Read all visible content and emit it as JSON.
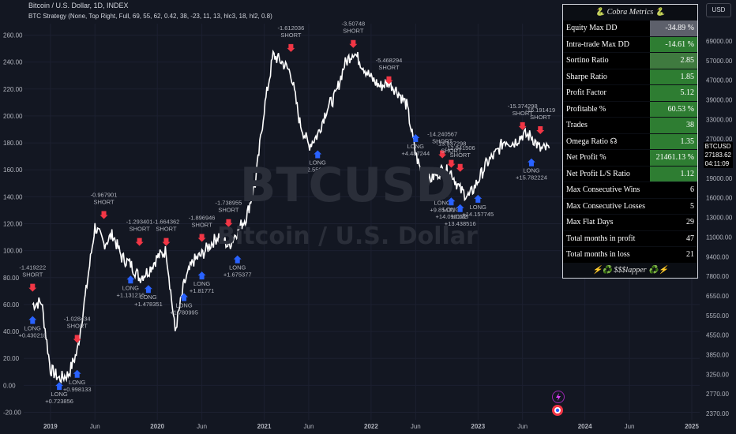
{
  "header": {
    "symbol_line": "Bitcoin / U.S. Dollar, 1D, INDEX",
    "strategy_line": "BTC Strategy (None, Top Right, Full, 69, 55, 62, 0.42, 38, -23, 11, 13, hlc3, 18, hl2, 0.8)"
  },
  "watermark": {
    "symbol": "BTCUSD",
    "subtitle": "Bitcoin / U.S. Dollar"
  },
  "currency_button": "USD",
  "price_tags": {
    "symbol": "BTCUSD",
    "price": "27183.62",
    "countdown": "04:11:09"
  },
  "colors": {
    "background": "#131722",
    "candles": "#ffffff",
    "long_arrow": "#2962ff",
    "short_arrow": "#f23645",
    "metric_green": "#2e7d32",
    "metric_gray": "#5d606b"
  },
  "metrics": {
    "title": "🐍 Cobra Metrics 🐍",
    "rows": [
      {
        "label": "Equity Max DD",
        "value": "-34.89 %",
        "color": "#5d606b"
      },
      {
        "label": "Intra-trade Max DD",
        "value": "-14.61 %",
        "color": "#2e7d32"
      },
      {
        "label": "Sortino Ratio",
        "value": "2.85",
        "color": "#3f7a3f"
      },
      {
        "label": "Sharpe Ratio",
        "value": "1.85",
        "color": "#2e7d32"
      },
      {
        "label": "Profit Factor",
        "value": "5.12",
        "color": "#2e7d32"
      },
      {
        "label": "Profitable %",
        "value": "60.53 %",
        "color": "#2e7d32"
      },
      {
        "label": "Trades",
        "value": "38",
        "color": "#2e7d32"
      },
      {
        "label": "Omega Ratio ☊",
        "value": "1.35",
        "color": "#2e7d32"
      },
      {
        "label": "Net Profit %",
        "value": "21461.13 %",
        "color": "#2e7d32"
      },
      {
        "label": "Net Profit L/S Ratio",
        "value": "1.12",
        "color": "#2e7d32"
      },
      {
        "label": "Max Consecutive Wins",
        "value": "6",
        "color": "#000000"
      },
      {
        "label": "Max Consecutive Losses",
        "value": "5",
        "color": "#000000"
      },
      {
        "label": "Max Flat Days",
        "value": "29",
        "color": "#000000"
      },
      {
        "label": "Total months in profit",
        "value": "47",
        "color": "#000000"
      },
      {
        "label": "Total months in loss",
        "value": "21",
        "color": "#000000"
      }
    ],
    "footer": "⚡️♻️ $$$lapper ♻️⚡️"
  },
  "chart_data": {
    "type": "line",
    "title": "Bitcoin / U.S. Dollar, 1D, INDEX",
    "left_axis": {
      "ticks": [
        "260.00",
        "240.00",
        "220.00",
        "200.00",
        "180.00",
        "160.00",
        "140.00",
        "120.00",
        "100.00",
        "80.00",
        "60.00",
        "40.00",
        "20.00",
        "0.00",
        "-20.00"
      ],
      "range": [
        -20,
        260
      ]
    },
    "right_axis": {
      "scale": "log",
      "ticks": [
        "69000.00",
        "57000.00",
        "47000.00",
        "39000.00",
        "33000.00",
        "27000.00",
        "23000.00",
        "19000.00",
        "16000.00",
        "13000.00",
        "11000.00",
        "9400.00",
        "7800.00",
        "6550.00",
        "5550.00",
        "4550.00",
        "3850.00",
        "3250.00",
        "2770.00",
        "2370.00"
      ]
    },
    "x_ticks": [
      "2019",
      "Jun",
      "2020",
      "Jun",
      "2021",
      "Jun",
      "2022",
      "Jun",
      "2023",
      "Jun",
      "2024",
      "Jun",
      "2025"
    ],
    "equity_curve": [
      {
        "x": "2018-11",
        "y": 60
      },
      {
        "x": "2018-12",
        "y": 62
      },
      {
        "x": "2019-01",
        "y": 12
      },
      {
        "x": "2019-02",
        "y": 5
      },
      {
        "x": "2019-03",
        "y": 8
      },
      {
        "x": "2019-04",
        "y": 25
      },
      {
        "x": "2019-05",
        "y": 70
      },
      {
        "x": "2019-06",
        "y": 118
      },
      {
        "x": "2019-07",
        "y": 105
      },
      {
        "x": "2019-08",
        "y": 112
      },
      {
        "x": "2019-09",
        "y": 95
      },
      {
        "x": "2019-10",
        "y": 90
      },
      {
        "x": "2019-11",
        "y": 80
      },
      {
        "x": "2019-12",
        "y": 85
      },
      {
        "x": "2020-01",
        "y": 95
      },
      {
        "x": "2020-02",
        "y": 100
      },
      {
        "x": "2020-03",
        "y": 40
      },
      {
        "x": "2020-04",
        "y": 75
      },
      {
        "x": "2020-05",
        "y": 92
      },
      {
        "x": "2020-06",
        "y": 97
      },
      {
        "x": "2020-07",
        "y": 105
      },
      {
        "x": "2020-08",
        "y": 112
      },
      {
        "x": "2020-09",
        "y": 103
      },
      {
        "x": "2020-10",
        "y": 115
      },
      {
        "x": "2020-11",
        "y": 125
      },
      {
        "x": "2020-12",
        "y": 150
      },
      {
        "x": "2021-01",
        "y": 205
      },
      {
        "x": "2021-02",
        "y": 245
      },
      {
        "x": "2021-03",
        "y": 240
      },
      {
        "x": "2021-04",
        "y": 232
      },
      {
        "x": "2021-05",
        "y": 195
      },
      {
        "x": "2021-06",
        "y": 178
      },
      {
        "x": "2021-07",
        "y": 186
      },
      {
        "x": "2021-08",
        "y": 205
      },
      {
        "x": "2021-09",
        "y": 215
      },
      {
        "x": "2021-10",
        "y": 238
      },
      {
        "x": "2021-11",
        "y": 248
      },
      {
        "x": "2021-12",
        "y": 238
      },
      {
        "x": "2022-01",
        "y": 228
      },
      {
        "x": "2022-02",
        "y": 222
      },
      {
        "x": "2022-03",
        "y": 225
      },
      {
        "x": "2022-04",
        "y": 218
      },
      {
        "x": "2022-05",
        "y": 208
      },
      {
        "x": "2022-06",
        "y": 172
      },
      {
        "x": "2022-07",
        "y": 150
      },
      {
        "x": "2022-08",
        "y": 155
      },
      {
        "x": "2022-09",
        "y": 160
      },
      {
        "x": "2022-10",
        "y": 158
      },
      {
        "x": "2022-11",
        "y": 145
      },
      {
        "x": "2022-12",
        "y": 140
      },
      {
        "x": "2023-01",
        "y": 152
      },
      {
        "x": "2023-02",
        "y": 165
      },
      {
        "x": "2023-03",
        "y": 172
      },
      {
        "x": "2023-04",
        "y": 182
      },
      {
        "x": "2023-05",
        "y": 180
      },
      {
        "x": "2023-06",
        "y": 186
      },
      {
        "x": "2023-07",
        "y": 185
      },
      {
        "x": "2023-08",
        "y": 175
      },
      {
        "x": "2023-09",
        "y": 176
      }
    ],
    "trade_labels": [
      {
        "text": "-1.612036 SHORT",
        "x": "2021-04",
        "y": 244,
        "side": "short"
      },
      {
        "text": "-3.50748 SHORT",
        "x": "2021-11",
        "y": 247,
        "side": "short"
      },
      {
        "text": "-5.468294 SHORT",
        "x": "2022-03",
        "y": 220,
        "side": "short"
      },
      {
        "text": "LONG +2.559795",
        "x": "2021-07",
        "y": 178,
        "side": "long"
      },
      {
        "text": "LONG +4.487244",
        "x": "2022-06",
        "y": 190,
        "side": "long"
      },
      {
        "text": "-0.967901 SHORT",
        "x": "2019-07",
        "y": 120,
        "side": "short"
      },
      {
        "text": "-1.293401 SHORT",
        "x": "2019-11",
        "y": 100,
        "side": "short"
      },
      {
        "text": "-1.664362 SHORT",
        "x": "2020-02",
        "y": 100,
        "side": "short"
      },
      {
        "text": "-1.896946 SHORT",
        "x": "2020-06",
        "y": 103,
        "side": "short"
      },
      {
        "text": "-1.738955 SHORT",
        "x": "2020-09",
        "y": 114,
        "side": "short"
      },
      {
        "text": "LONG +1.131216",
        "x": "2019-10",
        "y": 85,
        "side": "long"
      },
      {
        "text": "LONG +1.478351",
        "x": "2019-12",
        "y": 78,
        "side": "long"
      },
      {
        "text": "LONG +1.780995",
        "x": "2020-04",
        "y": 72,
        "side": "long"
      },
      {
        "text": "LONG +1.81771",
        "x": "2020-06",
        "y": 88,
        "side": "long"
      },
      {
        "text": "LONG +1.675377",
        "x": "2020-10",
        "y": 100,
        "side": "long"
      },
      {
        "text": "-1.419222 SHORT",
        "x": "2018-11",
        "y": 66,
        "side": "short"
      },
      {
        "text": "LONG +0.430218",
        "x": "2018-11",
        "y": 55,
        "side": "long"
      },
      {
        "text": "-1.028434 SHORT",
        "x": "2019-04",
        "y": 28,
        "side": "short"
      },
      {
        "text": "LONG +0.723856",
        "x": "2019-02",
        "y": 6,
        "side": "long"
      },
      {
        "text": "LONG +0.998133",
        "x": "2019-04",
        "y": 15,
        "side": "long"
      },
      {
        "text": "-14.240567 SHORT",
        "x": "2022-09",
        "y": 165,
        "side": "short"
      },
      {
        "text": "-13.937298 SHORT",
        "x": "2022-10",
        "y": 158,
        "side": "short"
      },
      {
        "text": "-12.941506 SHORT",
        "x": "2022-11",
        "y": 155,
        "side": "short"
      },
      {
        "text": "LONG +9.85431",
        "x": "2022-09",
        "y": 148,
        "side": "long"
      },
      {
        "text": "LONG +14.090122",
        "x": "2022-10",
        "y": 143,
        "side": "long"
      },
      {
        "text": "LONG +13.438516",
        "x": "2022-11",
        "y": 138,
        "side": "long"
      },
      {
        "text": "LONG +14.157745",
        "x": "2023-01",
        "y": 145,
        "side": "long"
      },
      {
        "text": "-15.374298 SHORT",
        "x": "2023-06",
        "y": 186,
        "side": "short"
      },
      {
        "text": "-16.191419 SHORT",
        "x": "2023-08",
        "y": 183,
        "side": "short"
      },
      {
        "text": "LONG +15.782224",
        "x": "2023-07",
        "y": 172,
        "side": "long"
      }
    ]
  }
}
